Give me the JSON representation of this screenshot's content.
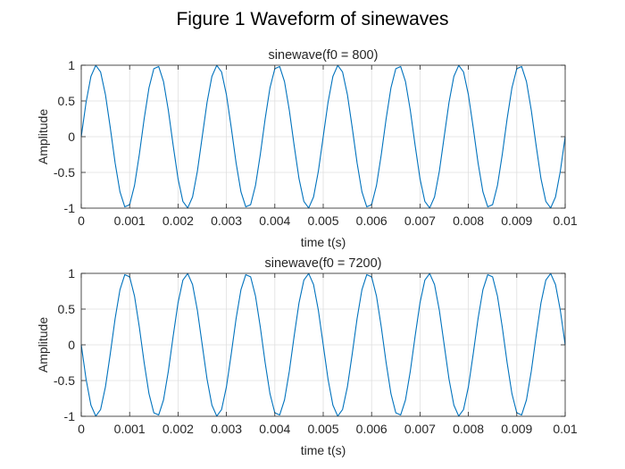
{
  "figure": {
    "title": "Figure 1 Waveform of sinewaves"
  },
  "colors": {
    "line": "#0072BD",
    "grid": "#dfdfdf",
    "axis": "#262626",
    "background": "#ffffff"
  },
  "chart_data": [
    {
      "type": "line",
      "title": "sinewave(f0 = 800)",
      "xlabel": "time t(s)",
      "ylabel": "Amplitude",
      "xlim": [
        0,
        0.01
      ],
      "ylim": [
        -1,
        1
      ],
      "xticks": [
        "0",
        "0.001",
        "0.002",
        "0.003",
        "0.004",
        "0.005",
        "0.006",
        "0.007",
        "0.008",
        "0.009",
        "0.01"
      ],
      "yticks": [
        "-1",
        "-0.5",
        "0",
        "0.5",
        "1"
      ],
      "grid": true,
      "series": [
        {
          "x": [
            0,
            0.0001,
            0.0002,
            0.0003,
            0.0004,
            0.0005,
            0.0006,
            0.0007,
            0.0008,
            0.0009,
            0.001,
            0.0011,
            0.0012,
            0.0013,
            0.0014,
            0.0015,
            0.0016,
            0.0017,
            0.0018,
            0.0019,
            0.002,
            0.0021,
            0.0022,
            0.0023,
            0.0024,
            0.0025,
            0.0026,
            0.0027,
            0.0028,
            0.0029,
            0.003,
            0.0031,
            0.0032,
            0.0033,
            0.0034,
            0.0035,
            0.0036,
            0.0037,
            0.0038,
            0.0039,
            0.004,
            0.0041,
            0.0042,
            0.0043,
            0.0044,
            0.0045,
            0.0046,
            0.0047,
            0.0048,
            0.0049,
            0.005,
            0.0051,
            0.0052,
            0.0053,
            0.0054,
            0.0055,
            0.0056,
            0.0057,
            0.0058,
            0.0059,
            0.006,
            0.0061,
            0.0062,
            0.0063,
            0.0064,
            0.0065,
            0.0066,
            0.0067,
            0.0068,
            0.0069,
            0.007,
            0.0071,
            0.0072,
            0.0073,
            0.0074,
            0.0075,
            0.0076,
            0.0077,
            0.0078,
            0.0079,
            0.008,
            0.0081,
            0.0082,
            0.0083,
            0.0084,
            0.0085,
            0.0086,
            0.0087,
            0.0088,
            0.0089,
            0.009,
            0.0091,
            0.0092,
            0.0093,
            0.0094,
            0.0095,
            0.0096,
            0.0097,
            0.0098,
            0.0099,
            0.01
          ],
          "y": [
            0,
            0.482,
            0.844,
            0.998,
            0.905,
            0.588,
            0.125,
            -0.368,
            -0.771,
            -0.982,
            -0.951,
            -0.685,
            -0.249,
            0.249,
            0.685,
            0.951,
            0.982,
            0.771,
            0.368,
            -0.125,
            -0.588,
            -0.905,
            -0.998,
            -0.844,
            -0.482,
            0,
            0.482,
            0.844,
            0.998,
            0.905,
            0.588,
            0.125,
            -0.368,
            -0.771,
            -0.982,
            -0.951,
            -0.685,
            -0.249,
            0.249,
            0.685,
            0.951,
            0.982,
            0.771,
            0.368,
            -0.125,
            -0.588,
            -0.905,
            -0.998,
            -0.844,
            -0.482,
            0,
            0.482,
            0.844,
            0.998,
            0.905,
            0.588,
            0.125,
            -0.368,
            -0.771,
            -0.982,
            -0.951,
            -0.685,
            -0.249,
            0.249,
            0.685,
            0.951,
            0.982,
            0.771,
            0.368,
            -0.125,
            -0.588,
            -0.905,
            -0.998,
            -0.844,
            -0.482,
            0,
            0.482,
            0.844,
            0.998,
            0.905,
            0.588,
            0.125,
            -0.368,
            -0.771,
            -0.982,
            -0.951,
            -0.685,
            -0.249,
            0.249,
            0.685,
            0.951,
            0.982,
            0.771,
            0.368,
            -0.125,
            -0.588,
            -0.905,
            -0.998,
            -0.844,
            -0.482,
            0
          ]
        }
      ]
    },
    {
      "type": "line",
      "title": "sinewave(f0 = 7200)",
      "xlabel": "time t(s)",
      "ylabel": "Amplitude",
      "xlim": [
        0,
        0.01
      ],
      "ylim": [
        -1,
        1
      ],
      "xticks": [
        "0",
        "0.001",
        "0.002",
        "0.003",
        "0.004",
        "0.005",
        "0.006",
        "0.007",
        "0.008",
        "0.009",
        "0.01"
      ],
      "yticks": [
        "-1",
        "-0.5",
        "0",
        "0.5",
        "1"
      ],
      "grid": true,
      "series": [
        {
          "x": [
            0,
            0.0001,
            0.0002,
            0.0003,
            0.0004,
            0.0005,
            0.0006,
            0.0007,
            0.0008,
            0.0009,
            0.001,
            0.0011,
            0.0012,
            0.0013,
            0.0014,
            0.0015,
            0.0016,
            0.0017,
            0.0018,
            0.0019,
            0.002,
            0.0021,
            0.0022,
            0.0023,
            0.0024,
            0.0025,
            0.0026,
            0.0027,
            0.0028,
            0.0029,
            0.003,
            0.0031,
            0.0032,
            0.0033,
            0.0034,
            0.0035,
            0.0036,
            0.0037,
            0.0038,
            0.0039,
            0.004,
            0.0041,
            0.0042,
            0.0043,
            0.0044,
            0.0045,
            0.0046,
            0.0047,
            0.0048,
            0.0049,
            0.005,
            0.0051,
            0.0052,
            0.0053,
            0.0054,
            0.0055,
            0.0056,
            0.0057,
            0.0058,
            0.0059,
            0.006,
            0.0061,
            0.0062,
            0.0063,
            0.0064,
            0.0065,
            0.0066,
            0.0067,
            0.0068,
            0.0069,
            0.007,
            0.0071,
            0.0072,
            0.0073,
            0.0074,
            0.0075,
            0.0076,
            0.0077,
            0.0078,
            0.0079,
            0.008,
            0.0081,
            0.0082,
            0.0083,
            0.0084,
            0.0085,
            0.0086,
            0.0087,
            0.0088,
            0.0089,
            0.009,
            0.0091,
            0.0092,
            0.0093,
            0.0094,
            0.0095,
            0.0096,
            0.0097,
            0.0098,
            0.0099,
            0.01
          ],
          "y": [
            0,
            -0.482,
            -0.844,
            -0.998,
            -0.905,
            -0.588,
            -0.125,
            0.368,
            0.771,
            0.982,
            0.951,
            0.685,
            0.249,
            -0.249,
            -0.685,
            -0.951,
            -0.982,
            -0.771,
            -0.368,
            0.125,
            0.588,
            0.905,
            0.998,
            0.844,
            0.482,
            0,
            -0.482,
            -0.844,
            -0.998,
            -0.905,
            -0.588,
            -0.125,
            0.368,
            0.771,
            0.982,
            0.951,
            0.685,
            0.249,
            -0.249,
            -0.685,
            -0.951,
            -0.982,
            -0.771,
            -0.368,
            0.125,
            0.588,
            0.905,
            0.998,
            0.844,
            0.482,
            0,
            -0.482,
            -0.844,
            -0.998,
            -0.905,
            -0.588,
            -0.125,
            0.368,
            0.771,
            0.982,
            0.951,
            0.685,
            0.249,
            -0.249,
            -0.685,
            -0.951,
            -0.982,
            -0.771,
            -0.368,
            0.125,
            0.588,
            0.905,
            0.998,
            0.844,
            0.482,
            0,
            -0.482,
            -0.844,
            -0.998,
            -0.905,
            -0.588,
            -0.125,
            0.368,
            0.771,
            0.982,
            0.951,
            0.685,
            0.249,
            -0.249,
            -0.685,
            -0.951,
            -0.982,
            -0.771,
            -0.368,
            0.125,
            0.588,
            0.905,
            0.998,
            0.844,
            0.482,
            0
          ]
        }
      ]
    }
  ]
}
